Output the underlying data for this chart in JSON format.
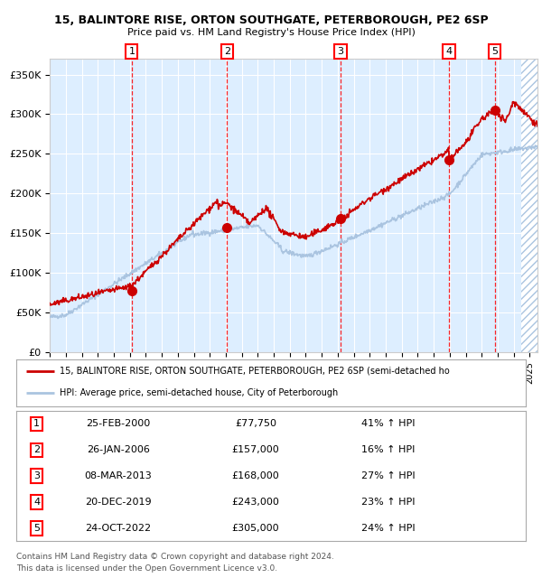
{
  "title1": "15, BALINTORE RISE, ORTON SOUTHGATE, PETERBOROUGH, PE2 6SP",
  "title2": "Price paid vs. HM Land Registry's House Price Index (HPI)",
  "legend_line1": "15, BALINTORE RISE, ORTON SOUTHGATE, PETERBOROUGH, PE2 6SP (semi-detached ho",
  "legend_line2": "HPI: Average price, semi-detached house, City of Peterborough",
  "footer1": "Contains HM Land Registry data © Crown copyright and database right 2024.",
  "footer2": "This data is licensed under the Open Government Licence v3.0.",
  "purchases": [
    {
      "label": "1",
      "date": "25-FEB-2000",
      "price": 77750,
      "pct": "41%",
      "dir": "↑",
      "x": 2000.12
    },
    {
      "label": "2",
      "date": "26-JAN-2006",
      "price": 157000,
      "pct": "16%",
      "dir": "↑",
      "x": 2006.07
    },
    {
      "label": "3",
      "date": "08-MAR-2013",
      "price": 168000,
      "pct": "27%",
      "dir": "↑",
      "x": 2013.18
    },
    {
      "label": "4",
      "date": "20-DEC-2019",
      "price": 243000,
      "pct": "23%",
      "dir": "↑",
      "x": 2019.96
    },
    {
      "label": "5",
      "date": "24-OCT-2022",
      "price": 305000,
      "pct": "24%",
      "dir": "↑",
      "x": 2022.81
    }
  ],
  "hpi_color": "#aac4e0",
  "price_color": "#cc0000",
  "bg_color": "#ddeeff",
  "hatch_color": "#aac4e0",
  "xlim": [
    1995.0,
    2025.5
  ],
  "ylim": [
    0,
    370000
  ],
  "yticks": [
    0,
    50000,
    100000,
    150000,
    200000,
    250000,
    300000,
    350000
  ],
  "ytick_labels": [
    "£0",
    "£50K",
    "£100K",
    "£150K",
    "£200K",
    "£250K",
    "£300K",
    "£350K"
  ]
}
